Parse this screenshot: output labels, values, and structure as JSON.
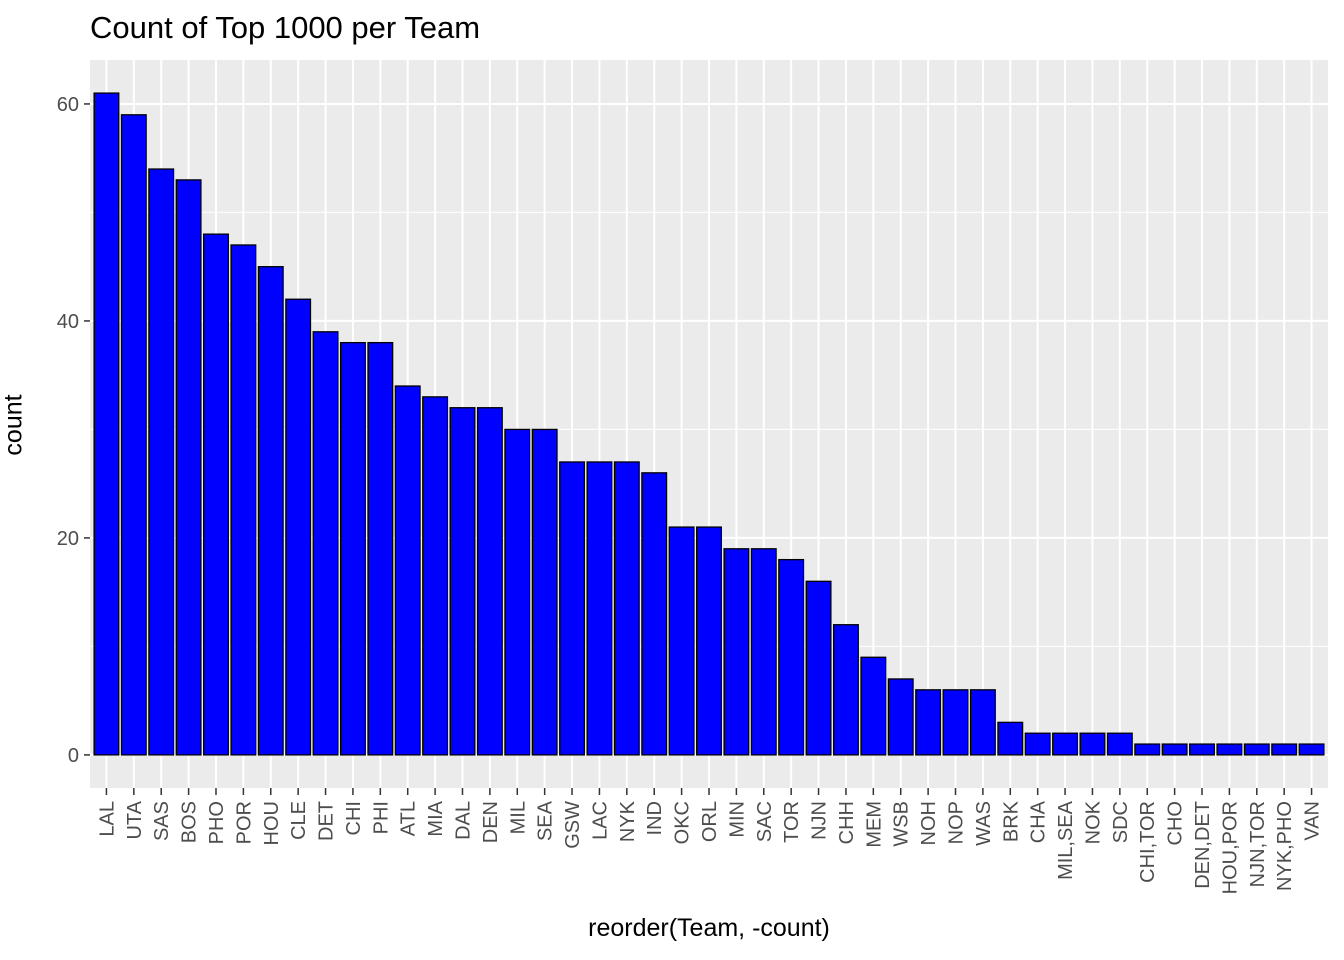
{
  "chart_data": {
    "type": "bar",
    "title": "Count of Top 1000 per Team",
    "xlabel": "reorder(Team, -count)",
    "ylabel": "count",
    "categories": [
      "LAL",
      "UTA",
      "SAS",
      "BOS",
      "PHO",
      "POR",
      "HOU",
      "CLE",
      "DET",
      "CHI",
      "PHI",
      "ATL",
      "MIA",
      "DAL",
      "DEN",
      "MIL",
      "SEA",
      "GSW",
      "LAC",
      "NYK",
      "IND",
      "OKC",
      "ORL",
      "MIN",
      "SAC",
      "TOR",
      "NJN",
      "CHH",
      "MEM",
      "WSB",
      "NOH",
      "NOP",
      "WAS",
      "BRK",
      "CHA",
      "MIL,SEA",
      "NOK",
      "SDC",
      "CHI,TOR",
      "CHO",
      "DEN,DET",
      "HOU,POR",
      "NJN,TOR",
      "NYK,PHO",
      "VAN"
    ],
    "values": [
      61,
      59,
      54,
      53,
      48,
      47,
      45,
      42,
      39,
      38,
      38,
      34,
      33,
      32,
      32,
      30,
      30,
      27,
      27,
      27,
      26,
      21,
      21,
      19,
      19,
      18,
      16,
      12,
      9,
      7,
      6,
      6,
      6,
      3,
      2,
      2,
      2,
      2,
      1,
      1,
      1,
      1,
      1,
      1,
      1
    ],
    "y_ticks": [
      "0",
      "20",
      "40",
      "60"
    ],
    "ylim": [
      -3.05,
      64.05
    ],
    "grid": true,
    "colors": {
      "bar_fill": "#0000ff",
      "bar_stroke": "#000000",
      "panel_bg": "#ebebeb",
      "grid": "#ffffff"
    }
  }
}
